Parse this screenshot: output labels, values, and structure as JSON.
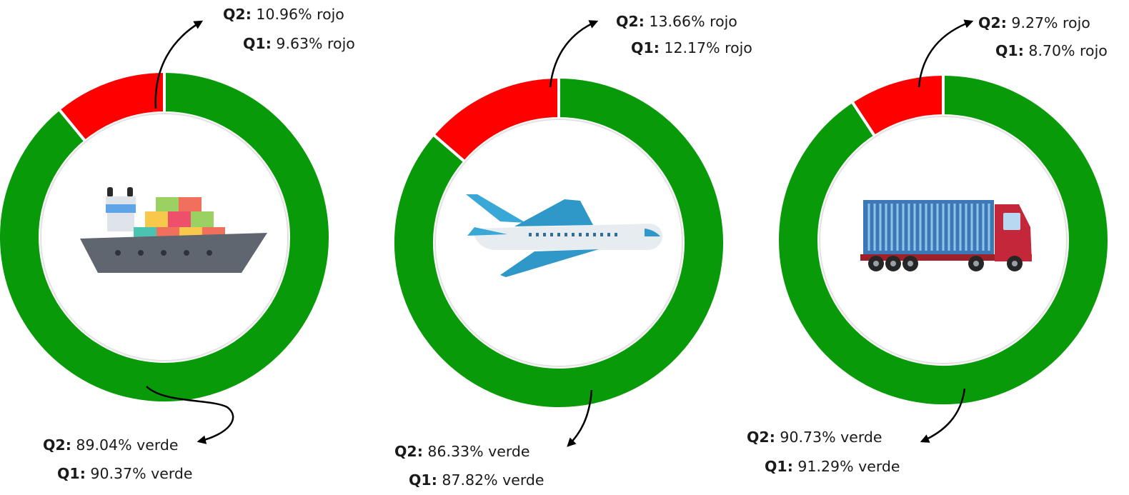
{
  "colors": {
    "verde": "#089a08",
    "rojo": "#ff0000",
    "separator": "#ffffff",
    "arrow": "#000000"
  },
  "chart_data": [
    {
      "type": "pie",
      "icon": "cargo-ship-icon",
      "slices": [
        {
          "label": "rojo",
          "value": 10.96,
          "color": "#ff0000"
        },
        {
          "label": "verde",
          "value": 89.04,
          "color": "#089a08"
        }
      ],
      "labels": {
        "rojo_q2_key": "Q2:",
        "rojo_q2_val": " 10.96% rojo",
        "rojo_q1_key": "Q1:",
        "rojo_q1_val": " 9.63% rojo",
        "verde_q2_key": "Q2:",
        "verde_q2_val": " 89.04% verde",
        "verde_q1_key": "Q1:",
        "verde_q1_val": " 90.37% verde"
      }
    },
    {
      "type": "pie",
      "icon": "airplane-icon",
      "slices": [
        {
          "label": "rojo",
          "value": 13.66,
          "color": "#ff0000"
        },
        {
          "label": "verde",
          "value": 86.33,
          "color": "#089a08"
        }
      ],
      "labels": {
        "rojo_q2_key": "Q2:",
        "rojo_q2_val": " 13.66% rojo",
        "rojo_q1_key": "Q1:",
        "rojo_q1_val": " 12.17% rojo",
        "verde_q2_key": "Q2:",
        "verde_q2_val": " 86.33% verde",
        "verde_q1_key": "Q1:",
        "verde_q1_val": " 87.82% verde"
      }
    },
    {
      "type": "pie",
      "icon": "container-truck-icon",
      "slices": [
        {
          "label": "rojo",
          "value": 9.27,
          "color": "#ff0000"
        },
        {
          "label": "verde",
          "value": 90.73,
          "color": "#089a08"
        }
      ],
      "labels": {
        "rojo_q2_key": "Q2:",
        "rojo_q2_val": " 9.27% rojo",
        "rojo_q1_key": "Q1:",
        "rojo_q1_val": " 8.70% rojo",
        "verde_q2_key": "Q2:",
        "verde_q2_val": " 90.73% verde",
        "verde_q1_key": "Q1:",
        "verde_q1_val": " 91.29% verde"
      }
    }
  ]
}
